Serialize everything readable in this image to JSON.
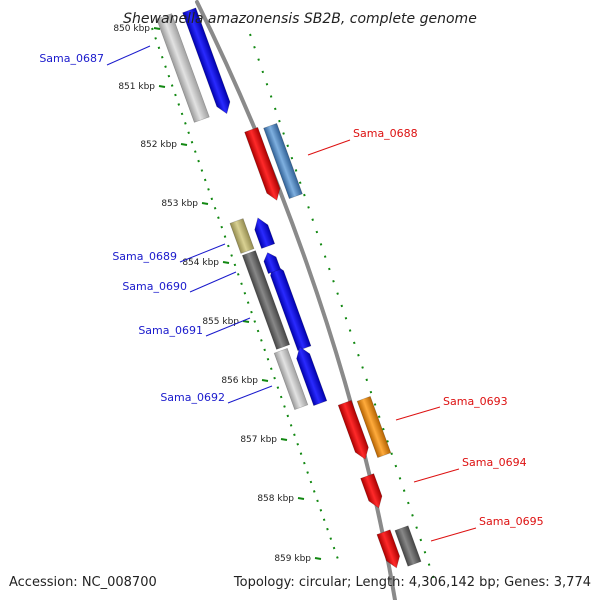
{
  "title": "Shewanella amazonensis SB2B, complete genome",
  "footer": {
    "accession": "Accession: NC_008700",
    "summary": "Topology: circular; Length: 4,306,142 bp; Genes: 3,774"
  },
  "kbp_labels": [
    "850 kbp",
    "851 kbp",
    "852 kbp",
    "853 kbp",
    "854 kbp",
    "855 kbp",
    "856 kbp",
    "857 kbp",
    "858 kbp",
    "859 kbp"
  ],
  "genes": [
    {
      "name": "Sama_0687",
      "color": "#1a1acc",
      "side": "left"
    },
    {
      "name": "Sama_0688",
      "color": "#dd1111",
      "side": "right"
    },
    {
      "name": "Sama_0689",
      "color": "#1a1acc",
      "side": "left"
    },
    {
      "name": "Sama_0690",
      "color": "#1a1acc",
      "side": "left"
    },
    {
      "name": "Sama_0691",
      "color": "#1a1acc",
      "side": "left"
    },
    {
      "name": "Sama_0692",
      "color": "#1a1acc",
      "side": "left"
    },
    {
      "name": "Sama_0693",
      "color": "#dd1111",
      "side": "right"
    },
    {
      "name": "Sama_0694",
      "color": "#dd1111",
      "side": "right"
    },
    {
      "name": "Sama_0695",
      "color": "#dd1111",
      "side": "right"
    }
  ],
  "colors": {
    "backbone": "#8a8a8a",
    "tick_green": "#118811",
    "forward_cds": "#0000ee",
    "reverse_cds": "#ee1111",
    "light_gray": "#c8c8c8",
    "dark_gray": "#6a6a6a",
    "khaki": "#c2b978",
    "steel_blue": "#5b8ec4",
    "orange": "#f08c10"
  }
}
